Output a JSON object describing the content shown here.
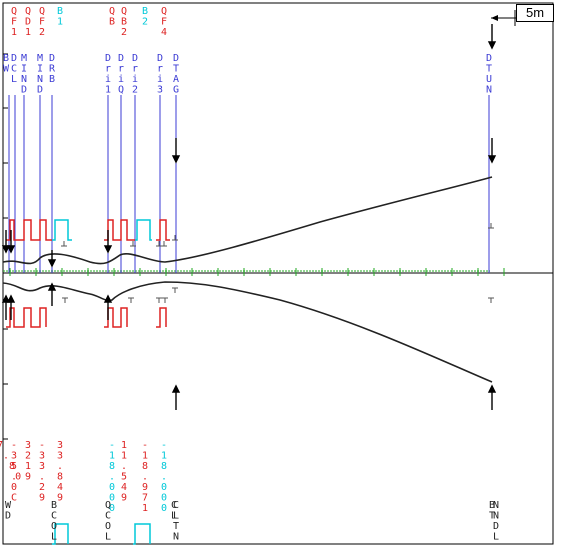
{
  "colors": {
    "quad": "#dd2222",
    "bend": "#00c8d8",
    "drift": "#3b3bd4",
    "envelope": "#222222",
    "axis_ticks": "#22aa22",
    "neutral": "#222222"
  },
  "scale_bar": {
    "label": "5m"
  },
  "top_labels": [
    {
      "id": "qf1",
      "chars": [
        "Q",
        "F",
        "1"
      ],
      "color": "quad"
    },
    {
      "id": "qd1",
      "chars": [
        "Q",
        "D",
        "1"
      ],
      "color": "quad"
    },
    {
      "id": "qf2",
      "chars": [
        "Q",
        "F",
        "2"
      ],
      "color": "quad"
    },
    {
      "id": "b1",
      "chars": [
        "B",
        "1"
      ],
      "color": "bend"
    },
    {
      "id": "qb",
      "chars": [
        "Q",
        "B"
      ],
      "color": "quad"
    },
    {
      "id": "qb2",
      "chars": [
        "Q",
        "B",
        "2"
      ],
      "color": "quad"
    },
    {
      "id": "b2",
      "chars": [
        "B",
        "2"
      ],
      "color": "bend"
    },
    {
      "id": "qf4",
      "chars": [
        "Q",
        "F",
        "4"
      ],
      "color": "quad"
    }
  ],
  "element_labels": [
    {
      "id": "bd",
      "chars": [
        "B",
        "W"
      ],
      "color": "drift"
    },
    {
      "id": "dcl",
      "chars": [
        "D",
        "C",
        "L"
      ],
      "color": "drift"
    },
    {
      "id": "mld",
      "chars": [
        "M",
        "I",
        "N",
        "D"
      ],
      "color": "drift"
    },
    {
      "id": "mind",
      "chars": [
        "M",
        "I",
        "N",
        "D"
      ],
      "color": "drift"
    },
    {
      "id": "drb",
      "chars": [
        "D",
        "R",
        "B"
      ],
      "color": "drift"
    },
    {
      "id": "dri1",
      "chars": [
        "D",
        "r",
        "i",
        "1"
      ],
      "color": "drift"
    },
    {
      "id": "drq",
      "chars": [
        "D",
        "r",
        "i",
        "Q"
      ],
      "color": "drift"
    },
    {
      "id": "dri2",
      "chars": [
        "D",
        "r",
        "i",
        "2"
      ],
      "color": "drift"
    },
    {
      "id": "dri3",
      "chars": [
        "D",
        "r",
        "i",
        "3"
      ],
      "color": "drift"
    },
    {
      "id": "dtag",
      "chars": [
        "D",
        "T",
        "A",
        "G"
      ],
      "color": "drift"
    },
    {
      "id": "dtun",
      "chars": [
        "D",
        "T",
        "U",
        "N"
      ],
      "color": "drift"
    }
  ],
  "bottom_values": [
    {
      "id": "v1",
      "chars": [
        "-",
        "3",
        "5",
        ".",
        "0",
        "C"
      ],
      "color": "quad"
    },
    {
      "id": "v2",
      "chars": [
        "3",
        "2",
        "1",
        "9"
      ],
      "color": "quad"
    },
    {
      "id": "v3",
      "chars": [
        "-",
        "3",
        "3",
        ".",
        "2",
        "9"
      ],
      "color": "quad"
    },
    {
      "id": "v4",
      "chars": [
        "3",
        "3",
        ".",
        "8",
        "4",
        "9"
      ],
      "color": "quad"
    },
    {
      "id": "v5",
      "chars": [
        "-",
        "1",
        "8",
        ".",
        "0",
        "0",
        "0"
      ],
      "color": "bend"
    },
    {
      "id": "v6",
      "chars": [
        "1",
        "1",
        ".",
        "5",
        "4",
        "9"
      ],
      "color": "quad"
    },
    {
      "id": "v7",
      "chars": [
        "-",
        "1",
        "8",
        ".",
        "9",
        "7",
        "1"
      ],
      "color": "quad"
    },
    {
      "id": "v8",
      "chars": [
        "-",
        "1",
        "8",
        ".",
        "0",
        "0",
        "0"
      ],
      "color": "bend"
    },
    {
      "id": "v9",
      "chars": [
        "7",
        ".",
        "8",
        "0"
      ],
      "color": "quad"
    }
  ],
  "bottom_names": [
    {
      "id": "wc",
      "chars": [
        "W",
        "D"
      ],
      "color": "neutral"
    },
    {
      "id": "cl",
      "chars": [
        "C",
        "L"
      ],
      "color": "neutral"
    },
    {
      "id": "bcol",
      "chars": [
        "B",
        "C",
        "O",
        "L"
      ],
      "color": "neutral"
    },
    {
      "id": "qcol",
      "chars": [
        "Q",
        "C",
        "O",
        "L"
      ],
      "color": "neutral"
    },
    {
      "id": "cltn",
      "chars": [
        "C",
        "L",
        "T",
        "N"
      ],
      "color": "neutral"
    },
    {
      "id": "btnn",
      "chars": [
        "B",
        "T"
      ],
      "color": "neutral"
    },
    {
      "id": "nndl",
      "chars": [
        "N",
        "N",
        "D",
        "L"
      ],
      "color": "neutral"
    }
  ]
}
